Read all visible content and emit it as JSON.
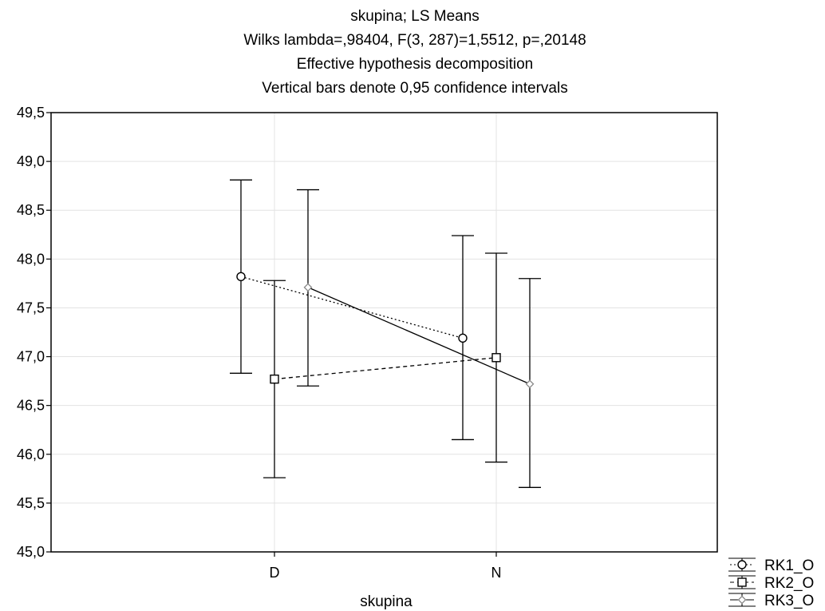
{
  "chart_data": {
    "type": "line",
    "title": "skupina; LS Means",
    "subtitle_lines": [
      "Wilks lambda=,98404, F(3, 287)=1,5512, p=,20148",
      "Effective hypothesis decomposition",
      "Vertical bars denote 0,95 confidence intervals"
    ],
    "xlabel": "skupina",
    "ylabel": "",
    "categories": [
      "D",
      "N"
    ],
    "ylim": [
      45.0,
      49.5
    ],
    "yticks": [
      "45,0",
      "45,5",
      "46,0",
      "46,5",
      "47,0",
      "47,5",
      "48,0",
      "48,5",
      "49,0",
      "49,5"
    ],
    "grid": true,
    "legend_position": "bottom-right",
    "series": [
      {
        "name": "RK1_O",
        "marker": "circle",
        "line": "dotted",
        "values": [
          47.82,
          47.19
        ],
        "ci_low": [
          46.83,
          46.15
        ],
        "ci_high": [
          48.81,
          48.24
        ]
      },
      {
        "name": "RK2_O",
        "marker": "square",
        "line": "dashed",
        "values": [
          46.77,
          46.99
        ],
        "ci_low": [
          45.76,
          45.92
        ],
        "ci_high": [
          47.78,
          48.06
        ]
      },
      {
        "name": "RK3_O",
        "marker": "diamond",
        "line": "solid",
        "values": [
          47.71,
          46.72
        ],
        "ci_low": [
          46.7,
          45.66
        ],
        "ci_high": [
          48.71,
          47.8
        ]
      }
    ]
  }
}
